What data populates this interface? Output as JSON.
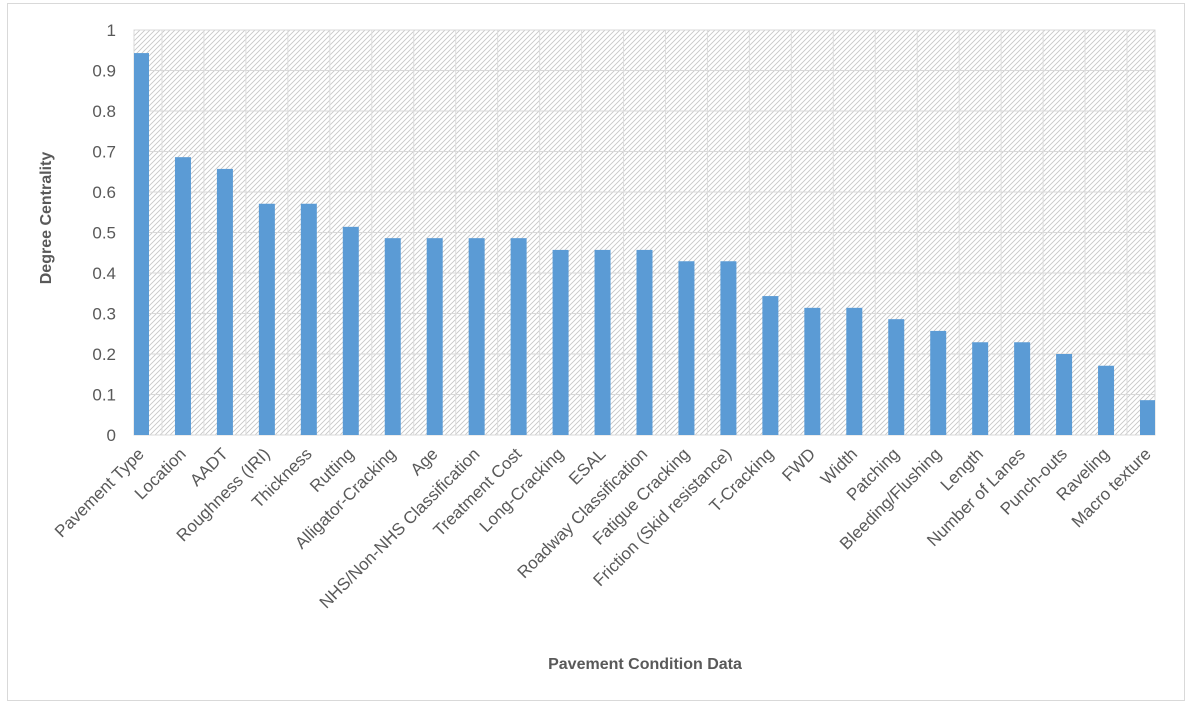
{
  "chart_data": {
    "type": "bar",
    "title": "",
    "xlabel": "Pavement Condition Data",
    "ylabel": "Degree Centrality",
    "ylim": [
      0,
      1
    ],
    "yticks": [
      "0",
      "0.1",
      "0.2",
      "0.3",
      "0.4",
      "0.5",
      "0.6",
      "0.7",
      "0.8",
      "0.9",
      "1"
    ],
    "grid": true,
    "legend": "none",
    "bar_color": "#5b9bd5",
    "categories": [
      "Pavement Type",
      "Location",
      "AADT",
      "Roughness (IRI)",
      "Thickness",
      "Rutting",
      "Alligator-Cracking",
      "Age",
      "NHS/Non-NHS Classification",
      "Treatment Cost",
      "Long-Cracking",
      "ESAL",
      "Roadway Classification",
      "Fatigue Cracking",
      "Friction (Skid resistance)",
      "T-Cracking",
      "FWD",
      "Width",
      "Patching",
      "Bleeding/Flushing",
      "Length",
      "Number of Lanes",
      "Punch-outs",
      "Raveling",
      "Macro texture"
    ],
    "values": [
      0.943,
      0.686,
      0.657,
      0.571,
      0.571,
      0.514,
      0.486,
      0.486,
      0.486,
      0.486,
      0.457,
      0.457,
      0.457,
      0.429,
      0.429,
      0.343,
      0.314,
      0.314,
      0.286,
      0.257,
      0.229,
      0.229,
      0.2,
      0.171,
      0.086
    ]
  }
}
